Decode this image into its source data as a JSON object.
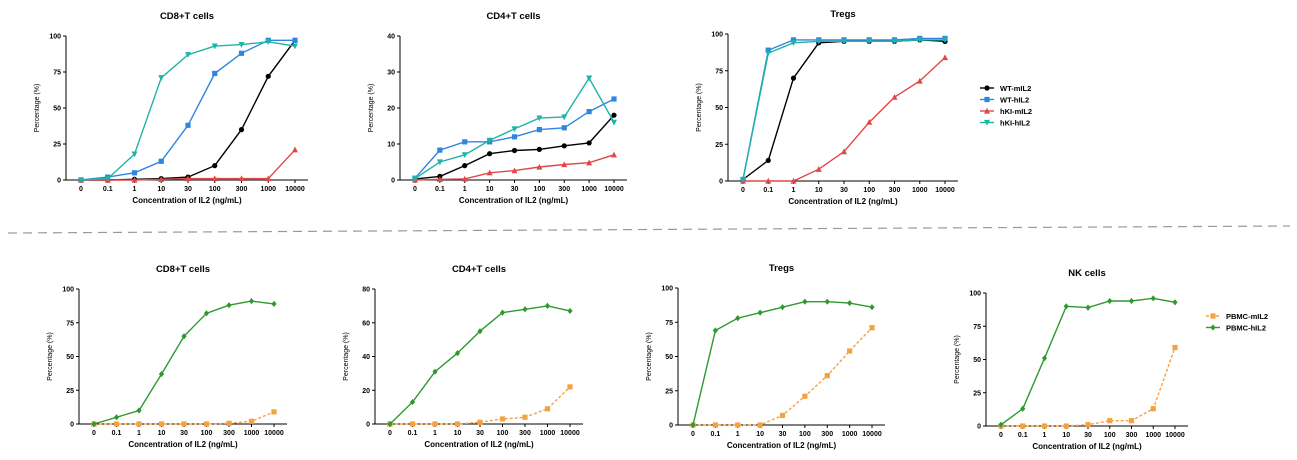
{
  "separator": {
    "color": "#999999"
  },
  "legends": [
    {
      "series_keys": [
        "WT-mIL2",
        "WT-hIL2",
        "hKI-mIL2",
        "hKI-hIL2"
      ]
    },
    {
      "series_keys": [
        "PBMC-mIL2",
        "PBMC-hIL2"
      ]
    }
  ],
  "series_styles": {
    "WT-mIL2": {
      "color": "#000000",
      "marker": "circle",
      "dash": false
    },
    "WT-hIL2": {
      "color": "#2e86de",
      "marker": "square",
      "dash": false
    },
    "hKI-mIL2": {
      "color": "#e04848",
      "marker": "triangle",
      "dash": false
    },
    "hKI-hIL2": {
      "color": "#1fb3a8",
      "marker": "triangle-down",
      "dash": false
    },
    "PBMC-mIL2": {
      "color": "#f5a142",
      "marker": "square",
      "dash": true
    },
    "PBMC-hIL2": {
      "color": "#2e9a2e",
      "marker": "diamond",
      "dash": false
    }
  },
  "chart_data": [
    {
      "type": "line",
      "title": "CD8+T cells",
      "xlabel": "Concentration of IL2 (ng/mL)",
      "ylabel": "Percentage (%)",
      "categories": [
        "0",
        "0.1",
        "1",
        "10",
        "30",
        "100",
        "300",
        "1000",
        "10000"
      ],
      "ylim": [
        0,
        100
      ],
      "yticks": [
        "0",
        "25",
        "50",
        "75",
        "100"
      ],
      "series": [
        {
          "name": "WT-mIL2",
          "values": [
            0,
            0,
            0.5,
            1,
            2,
            10,
            35,
            72,
            97
          ]
        },
        {
          "name": "WT-hIL2",
          "values": [
            0,
            2,
            5,
            13,
            38,
            74,
            88,
            97,
            97
          ]
        },
        {
          "name": "hKI-mIL2",
          "values": [
            0,
            0,
            0,
            0.5,
            1,
            1,
            1,
            1,
            21
          ]
        },
        {
          "name": "hKI-hIL2",
          "values": [
            0,
            1,
            18,
            71,
            87,
            93,
            94,
            96,
            93
          ]
        }
      ]
    },
    {
      "type": "line",
      "title": "CD4+T cells",
      "xlabel": "Concentration of IL2 (ng/mL)",
      "ylabel": "Percentage (%)",
      "categories": [
        "0",
        "0.1",
        "1",
        "10",
        "30",
        "100",
        "300",
        "1000",
        "10000"
      ],
      "ylim": [
        0,
        40
      ],
      "yticks": [
        "0",
        "10",
        "20",
        "30",
        "40"
      ],
      "series": [
        {
          "name": "WT-mIL2",
          "values": [
            0.3,
            1,
            4,
            7.3,
            8.2,
            8.5,
            9.5,
            10.3,
            18
          ]
        },
        {
          "name": "WT-hIL2",
          "values": [
            0.5,
            8.3,
            10.6,
            10.6,
            12,
            14,
            14.5,
            19,
            22.5
          ]
        },
        {
          "name": "hKI-mIL2",
          "values": [
            0,
            0.2,
            0.3,
            2,
            2.6,
            3.6,
            4.3,
            4.8,
            7
          ]
        },
        {
          "name": "hKI-hIL2",
          "values": [
            0.4,
            5,
            7,
            11,
            14.2,
            17.2,
            17.5,
            28.3,
            16
          ]
        }
      ]
    },
    {
      "type": "line",
      "title": "Tregs",
      "xlabel": "Concentration of IL2 (ng/mL)",
      "ylabel": "Percentage (%)",
      "categories": [
        "0",
        "0.1",
        "1",
        "10",
        "30",
        "100",
        "300",
        "1000",
        "10000"
      ],
      "ylim": [
        0,
        100
      ],
      "yticks": [
        "0",
        "25",
        "50",
        "75",
        "100"
      ],
      "series": [
        {
          "name": "WT-mIL2",
          "values": [
            1,
            14,
            70,
            94,
            95,
            95,
            95,
            96,
            95
          ]
        },
        {
          "name": "WT-hIL2",
          "values": [
            1,
            89,
            96,
            96,
            96,
            96,
            96,
            97,
            97
          ]
        },
        {
          "name": "hKI-mIL2",
          "values": [
            0,
            0,
            0,
            8,
            20,
            40,
            57,
            68,
            84
          ]
        },
        {
          "name": "hKI-hIL2",
          "values": [
            1,
            87,
            94,
            95,
            95,
            95,
            95,
            96,
            96
          ]
        }
      ]
    },
    {
      "type": "line",
      "title": "CD8+T cells",
      "xlabel": "Concentration of IL2 (ng/mL)",
      "ylabel": "Percentage (%)",
      "categories": [
        "0",
        "0.1",
        "1",
        "10",
        "30",
        "100",
        "300",
        "1000",
        "10000"
      ],
      "ylim": [
        0,
        100
      ],
      "yticks": [
        "0",
        "25",
        "50",
        "75",
        "100"
      ],
      "series": [
        {
          "name": "PBMC-mIL2",
          "values": [
            0,
            0,
            0,
            0,
            0,
            0,
            0.5,
            2,
            9
          ]
        },
        {
          "name": "PBMC-hIL2",
          "values": [
            0,
            5,
            10,
            37,
            65,
            82,
            88,
            91,
            89
          ]
        }
      ]
    },
    {
      "type": "line",
      "title": "CD4+T cells",
      "xlabel": "Concentration of IL2 (ng/mL)",
      "ylabel": "Percentage (%)",
      "categories": [
        "0",
        "0.1",
        "1",
        "10",
        "30",
        "100",
        "300",
        "1000",
        "10000"
      ],
      "ylim": [
        0,
        80
      ],
      "yticks": [
        "0",
        "20",
        "40",
        "60",
        "80"
      ],
      "series": [
        {
          "name": "PBMC-mIL2",
          "values": [
            0,
            0,
            0,
            0,
            1,
            3,
            4,
            9,
            22
          ]
        },
        {
          "name": "PBMC-hIL2",
          "values": [
            0,
            13,
            31,
            42,
            55,
            66,
            68,
            70,
            67
          ]
        }
      ]
    },
    {
      "type": "line",
      "title": "Tregs",
      "xlabel": "Concentration of IL2 (ng/mL)",
      "ylabel": "Percentage (%)",
      "categories": [
        "0",
        "0.1",
        "1",
        "10",
        "30",
        "100",
        "300",
        "1000",
        "10000"
      ],
      "ylim": [
        0,
        100
      ],
      "yticks": [
        "0",
        "25",
        "50",
        "75",
        "100"
      ],
      "series": [
        {
          "name": "PBMC-mIL2",
          "values": [
            0,
            0,
            0,
            0,
            7,
            21,
            36,
            54,
            71
          ]
        },
        {
          "name": "PBMC-hIL2",
          "values": [
            0,
            69,
            78,
            82,
            86,
            90,
            90,
            89,
            86
          ]
        }
      ]
    },
    {
      "type": "line",
      "title": "NK cells",
      "xlabel": "Concentration of IL2 (ng/mL)",
      "ylabel": "Percentage (%)",
      "categories": [
        "0",
        "0.1",
        "1",
        "10",
        "30",
        "100",
        "300",
        "1000",
        "10000"
      ],
      "ylim": [
        0,
        100
      ],
      "yticks": [
        "0",
        "25",
        "50",
        "75",
        "100"
      ],
      "series": [
        {
          "name": "PBMC-mIL2",
          "values": [
            0,
            0,
            0,
            0,
            1,
            4,
            4,
            13,
            59
          ]
        },
        {
          "name": "PBMC-hIL2",
          "values": [
            1,
            13,
            51,
            90,
            89,
            94,
            94,
            96,
            93
          ]
        }
      ]
    }
  ]
}
